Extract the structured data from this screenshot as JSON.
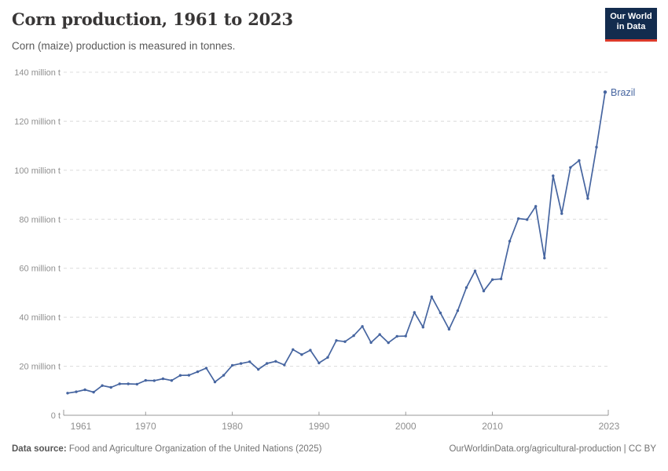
{
  "header": {
    "title": "Corn production, 1961 to 2023",
    "subtitle": "Corn (maize) production is measured in tonnes."
  },
  "logo": {
    "line1": "Our World",
    "line2": "in Data",
    "bg_color": "#132c4e",
    "accent_color": "#dc3a2b"
  },
  "chart_data": {
    "type": "line",
    "title": "Corn production, 1961 to 2023",
    "unit": "tonnes",
    "grid": "horizontal-dashed",
    "legend_position": "end-of-line-label",
    "ylim": [
      0,
      140
    ],
    "yticks": [
      {
        "value": 0,
        "label": "0 t"
      },
      {
        "value": 20,
        "label": "20 million t"
      },
      {
        "value": 40,
        "label": "40 million t"
      },
      {
        "value": 60,
        "label": "60 million t"
      },
      {
        "value": 80,
        "label": "80 million t"
      },
      {
        "value": 100,
        "label": "100 million t"
      },
      {
        "value": 120,
        "label": "120 million t"
      },
      {
        "value": 140,
        "label": "140 million t"
      }
    ],
    "xticks": [
      {
        "year": 1961,
        "label": "1961"
      },
      {
        "year": 1970,
        "label": "1970"
      },
      {
        "year": 1980,
        "label": "1980"
      },
      {
        "year": 1990,
        "label": "1990"
      },
      {
        "year": 2000,
        "label": "2000"
      },
      {
        "year": 2010,
        "label": "2010"
      },
      {
        "year": 2023,
        "label": "2023"
      }
    ],
    "series": [
      {
        "name": "Brazil",
        "color": "#4665a0",
        "unit_scale": "million tonnes",
        "x": [
          1961,
          1962,
          1963,
          1964,
          1965,
          1966,
          1967,
          1968,
          1969,
          1970,
          1971,
          1972,
          1973,
          1974,
          1975,
          1976,
          1977,
          1978,
          1979,
          1980,
          1981,
          1982,
          1983,
          1984,
          1985,
          1986,
          1987,
          1988,
          1989,
          1990,
          1991,
          1992,
          1993,
          1994,
          1995,
          1996,
          1997,
          1998,
          1999,
          2000,
          2001,
          2002,
          2003,
          2004,
          2005,
          2006,
          2007,
          2008,
          2009,
          2010,
          2011,
          2012,
          2013,
          2014,
          2015,
          2016,
          2017,
          2018,
          2019,
          2020,
          2021,
          2022,
          2023
        ],
        "values": [
          9.04,
          9.59,
          10.42,
          9.41,
          12.11,
          11.37,
          12.82,
          12.81,
          12.69,
          14.22,
          14.13,
          14.89,
          14.19,
          16.27,
          16.33,
          17.75,
          19.26,
          13.57,
          16.31,
          20.37,
          21.12,
          21.84,
          18.73,
          21.16,
          22.02,
          20.54,
          26.8,
          24.75,
          26.57,
          21.35,
          23.62,
          30.51,
          30.06,
          32.49,
          36.27,
          29.65,
          32.95,
          29.6,
          32.24,
          32.32,
          41.96,
          35.93,
          48.33,
          41.79,
          35.11,
          42.66,
          52.11,
          58.93,
          50.72,
          55.36,
          55.66,
          71.07,
          80.27,
          79.88,
          85.28,
          64.14,
          97.72,
          82.29,
          101.14,
          103.96,
          88.46,
          109.42,
          131.9
        ]
      }
    ]
  },
  "colors": {
    "gridline": "#dcdcdc",
    "axis": "#999999",
    "tick_text": "#8f8f8f"
  },
  "footer": {
    "source_label": "Data source:",
    "source_text": " Food and Agriculture Organization of the United Nations (2025)",
    "link_text": "OurWorldinData.org/agricultural-production | CC BY"
  }
}
